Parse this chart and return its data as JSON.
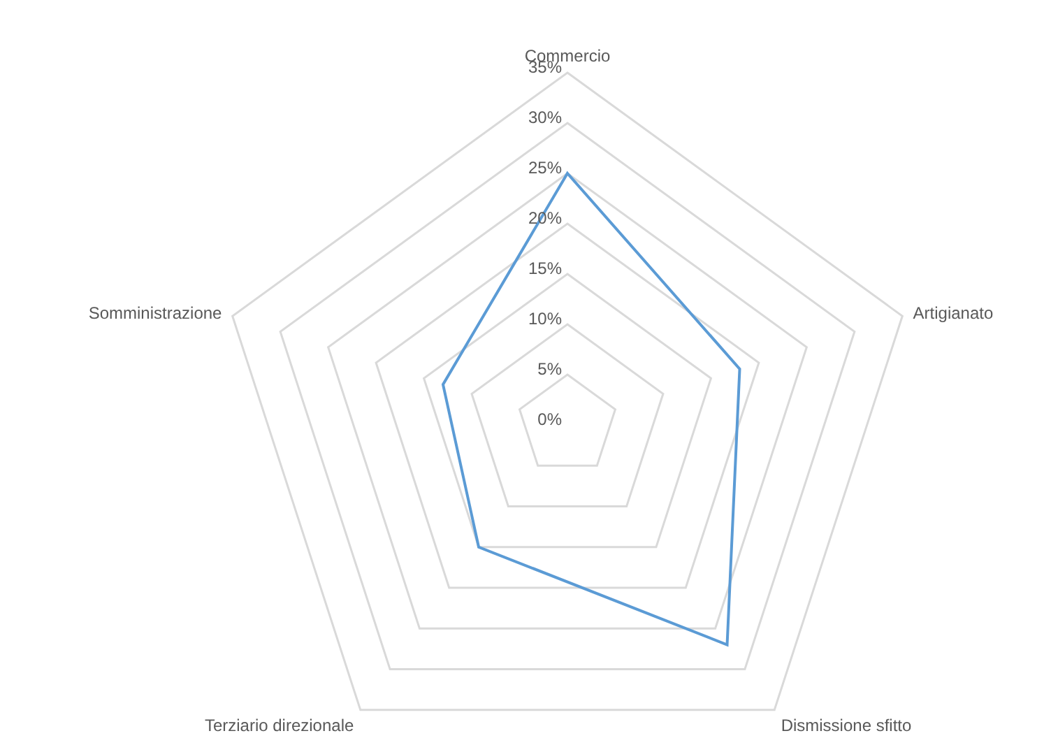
{
  "chart_data": {
    "type": "radar",
    "categories": [
      "Commercio",
      "Artigianato",
      "Dismissione sfitto",
      "Terziario direzionale",
      "Somministrazione"
    ],
    "series": [
      {
        "color": "#5b9bd5",
        "values": [
          25,
          18,
          27,
          15,
          13
        ]
      }
    ],
    "ylim": [
      0,
      35
    ],
    "yticks": [
      {
        "value": 0,
        "label": "0%"
      },
      {
        "value": 5,
        "label": "5%"
      },
      {
        "value": 10,
        "label": "10%"
      },
      {
        "value": 15,
        "label": "15%"
      },
      {
        "value": 20,
        "label": "20%"
      },
      {
        "value": 25,
        "label": "25%"
      },
      {
        "value": 30,
        "label": "30%"
      },
      {
        "value": 35,
        "label": "35%"
      }
    ],
    "grid": true,
    "marker": "none"
  }
}
